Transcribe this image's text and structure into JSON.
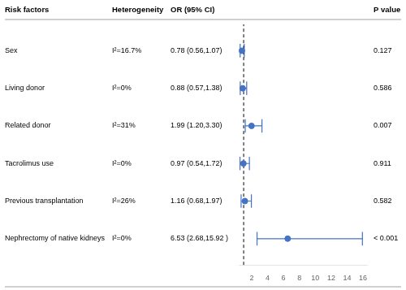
{
  "chart_data": {
    "type": "forest",
    "columns": [
      "Risk factors",
      "Heterogeneity",
      "OR (95% CI)",
      "P value"
    ],
    "categories": [
      "Sex",
      "Living donor",
      "Related donor",
      "Tacrolimus use",
      "Previous transplantation",
      "Nephrectomy of native kidneys"
    ],
    "heterogeneity": [
      "I²=16.7%",
      "I²=0%",
      "I²=31%",
      "I²=0%",
      "I²=26%",
      "I²=0%"
    ],
    "or_text": [
      "0.78 (0.56,1.07)",
      "0.88 (0.57,1.38)",
      "1.99 (1.20,3.30)",
      "0.97 (0.54,1.72)",
      "1.16 (0.68,1.97)",
      "6.53 (2.68,15.92 )"
    ],
    "p_values": [
      "0.127",
      "0.586",
      "0.007",
      "0.911",
      "0.582",
      "< 0.001"
    ],
    "values": [
      0.78,
      0.88,
      1.99,
      0.97,
      1.16,
      6.53
    ],
    "ci_low": [
      0.56,
      0.57,
      1.2,
      0.54,
      0.68,
      2.68
    ],
    "ci_high": [
      1.07,
      1.38,
      3.3,
      1.72,
      1.97,
      15.92
    ],
    "ref_line": 1.0,
    "color": "#4472C4",
    "xlim": [
      0.38,
      16.5
    ],
    "xticks": [
      2,
      4,
      6,
      8,
      10,
      12,
      14,
      16
    ],
    "grid": false
  }
}
